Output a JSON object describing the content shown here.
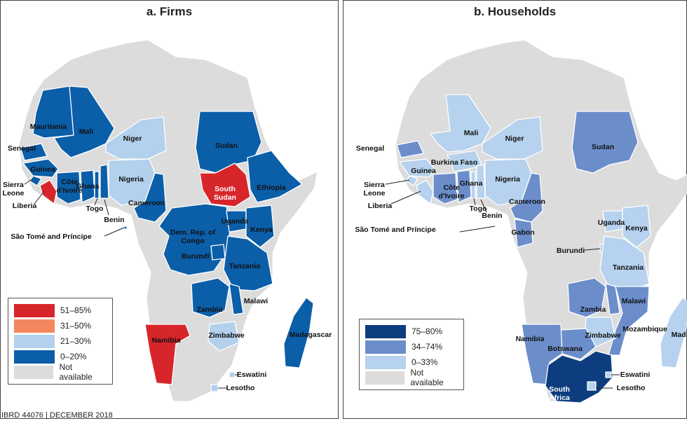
{
  "panels": [
    {
      "title": "a. Firms",
      "legend": [
        {
          "label": "51–85%",
          "color": "#d7262b"
        },
        {
          "label": "31–50%",
          "color": "#f4875d"
        },
        {
          "label": "21–30%",
          "color": "#b3d1ec"
        },
        {
          "label": "0–20%",
          "color": "#0b5ea8"
        },
        {
          "label": "Not available",
          "color": "#dcdcdc"
        }
      ],
      "labels": {
        "mauritania": "Mauritania",
        "mali": "Mali",
        "senegal": "Senegal",
        "guinea": "Guinea",
        "sierra_leone": "Sierra\nLeone",
        "liberia": "Liberia",
        "cote": "Côte\nd'Ivoire",
        "ghana": "Ghana",
        "togo": "Togo",
        "benin": "Benin",
        "niger": "Niger",
        "nigeria": "Nigeria",
        "cameroon": "Cameroon",
        "stp": "São Tomé and Príncipe",
        "sudan": "Sudan",
        "south_sudan": "South\nSudan",
        "ethiopia": "Ethiopia",
        "drc": "Dem. Rep. of\nCongo",
        "uganda": "Uganda",
        "kenya": "Kenya",
        "burundi": "Burundi",
        "tanzania": "Tanzania",
        "zambia": "Zambia",
        "malawi": "Malawi",
        "zimbabwe": "Zimbabwe",
        "madagascar": "Madagascar",
        "namibia": "Namibia",
        "eswatini": "Eswatini",
        "lesotho": "Lesotho"
      }
    },
    {
      "title": "b. Households",
      "legend": [
        {
          "label": "75–80%",
          "color": "#0d3d7e"
        },
        {
          "label": "34–74%",
          "color": "#6b8ecb"
        },
        {
          "label": "0–33%",
          "color": "#b6d2ee"
        },
        {
          "label": "Not available",
          "color": "#dcdcdc"
        }
      ],
      "labels": {
        "senegal": "Senegal",
        "mali": "Mali",
        "niger": "Niger",
        "burkina": "Burkina Faso",
        "guinea": "Guinea",
        "sierra_leone": "Sierra\nLeone",
        "liberia": "Liberia",
        "cote": "Côte\nd'Ivoire",
        "ghana": "Ghana",
        "togo": "Togo",
        "benin": "Benin",
        "nigeria": "Nigeria",
        "cameroon": "Cameroon",
        "stp": "São Tomé and Príncipe",
        "gabon": "Gabon",
        "sudan": "Sudan",
        "uganda": "Uganda",
        "kenya": "Kenya",
        "burundi": "Burundi",
        "tanzania": "Tanzania",
        "zambia": "Zambia",
        "malawi": "Malawi",
        "mozambique": "Mozambique",
        "zimbabwe": "Zimbabwe",
        "botswana": "Botswana",
        "namibia": "Namibia",
        "madagascar": "Madagascar",
        "eswatini": "Eswatini",
        "lesotho": "Lesotho",
        "south_africa": "South\nAfrica"
      }
    }
  ],
  "colors": {
    "not_available": "#dcdcdc",
    "border": "#ffffff"
  },
  "footer": "IBRD 44076 | DECEMBER 2018"
}
